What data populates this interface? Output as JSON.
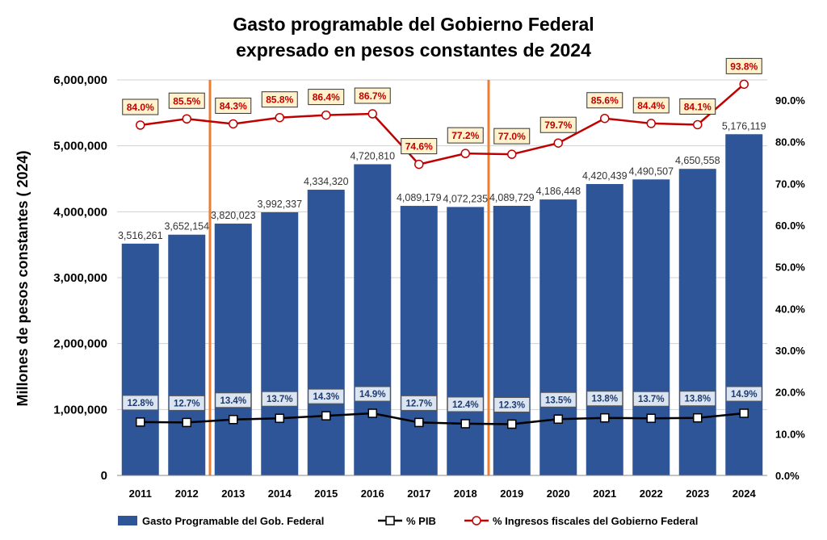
{
  "chart_data": {
    "type": "bar",
    "title_lines": [
      "Gasto programable del Gobierno Federal",
      "expresado en pesos constantes de 2024"
    ],
    "ylabel": "Millones de pesos constantes ( 2024)",
    "categories": [
      "2011",
      "2012",
      "2013",
      "2014",
      "2015",
      "2016",
      "2017",
      "2018",
      "2019",
      "2020",
      "2021",
      "2022",
      "2023",
      "2024"
    ],
    "ylim": [
      0,
      6000000
    ],
    "y_ticks": [
      0,
      1000000,
      2000000,
      3000000,
      4000000,
      5000000,
      6000000
    ],
    "y_tick_labels": [
      "0",
      "1,000,000",
      "2,000,000",
      "3,000,000",
      "4,000,000",
      "5,000,000",
      "6,000,000"
    ],
    "y2lim": [
      0,
      0.95
    ],
    "y2_ticks": [
      0,
      0.1,
      0.2,
      0.3,
      0.4,
      0.5,
      0.6,
      0.7,
      0.8,
      0.9
    ],
    "y2_tick_labels": [
      "0.0%",
      "10.0%",
      "20.0%",
      "30.0%",
      "40.0%",
      "50.0%",
      "60.0%",
      "70.0%",
      "80.0%",
      "90.0%"
    ],
    "grid": true,
    "legend_position": "bottom",
    "vertical_markers_after": [
      "2012",
      "2018"
    ],
    "series": [
      {
        "name": "Gasto Programable  del Gob. Federal",
        "type": "bar",
        "color": "#2e5597",
        "values": [
          3516261,
          3652154,
          3820023,
          3992337,
          4334320,
          4720810,
          4089179,
          4072235,
          4089729,
          4186448,
          4420439,
          4490507,
          4650558,
          5176119
        ],
        "labels": [
          "3,516,261",
          "3,652,154",
          "3,820,023",
          "3,992,337",
          "4,334,320",
          "4,720,810",
          "4,089,179",
          "4,072,235",
          "4,089,729",
          "4,186,448",
          "4,420,439",
          "4,490,507",
          "4,650,558",
          "5,176,119"
        ]
      },
      {
        "name": "% PIB",
        "type": "line",
        "axis": "right",
        "color": "#000000",
        "values": [
          0.128,
          0.127,
          0.134,
          0.137,
          0.143,
          0.149,
          0.127,
          0.124,
          0.123,
          0.135,
          0.138,
          0.137,
          0.138,
          0.149
        ],
        "labels": [
          "12.8%",
          "12.7%",
          "13.4%",
          "13.7%",
          "14.3%",
          "14.9%",
          "12.7%",
          "12.4%",
          "12.3%",
          "13.5%",
          "13.8%",
          "13.7%",
          "13.8%",
          "14.9%"
        ]
      },
      {
        "name": "% Ingresos fiscales del Gobierno Federal",
        "type": "line",
        "axis": "right",
        "color": "#c00000",
        "values": [
          0.84,
          0.855,
          0.843,
          0.858,
          0.864,
          0.867,
          0.746,
          0.772,
          0.77,
          0.797,
          0.856,
          0.844,
          0.841,
          0.938
        ],
        "labels": [
          "84.0%",
          "85.5%",
          "84.3%",
          "85.8%",
          "86.4%",
          "86.7%",
          "74.6%",
          "77.2%",
          "77.0%",
          "79.7%",
          "85.6%",
          "84.4%",
          "84.1%",
          "93.8%"
        ]
      }
    ]
  }
}
